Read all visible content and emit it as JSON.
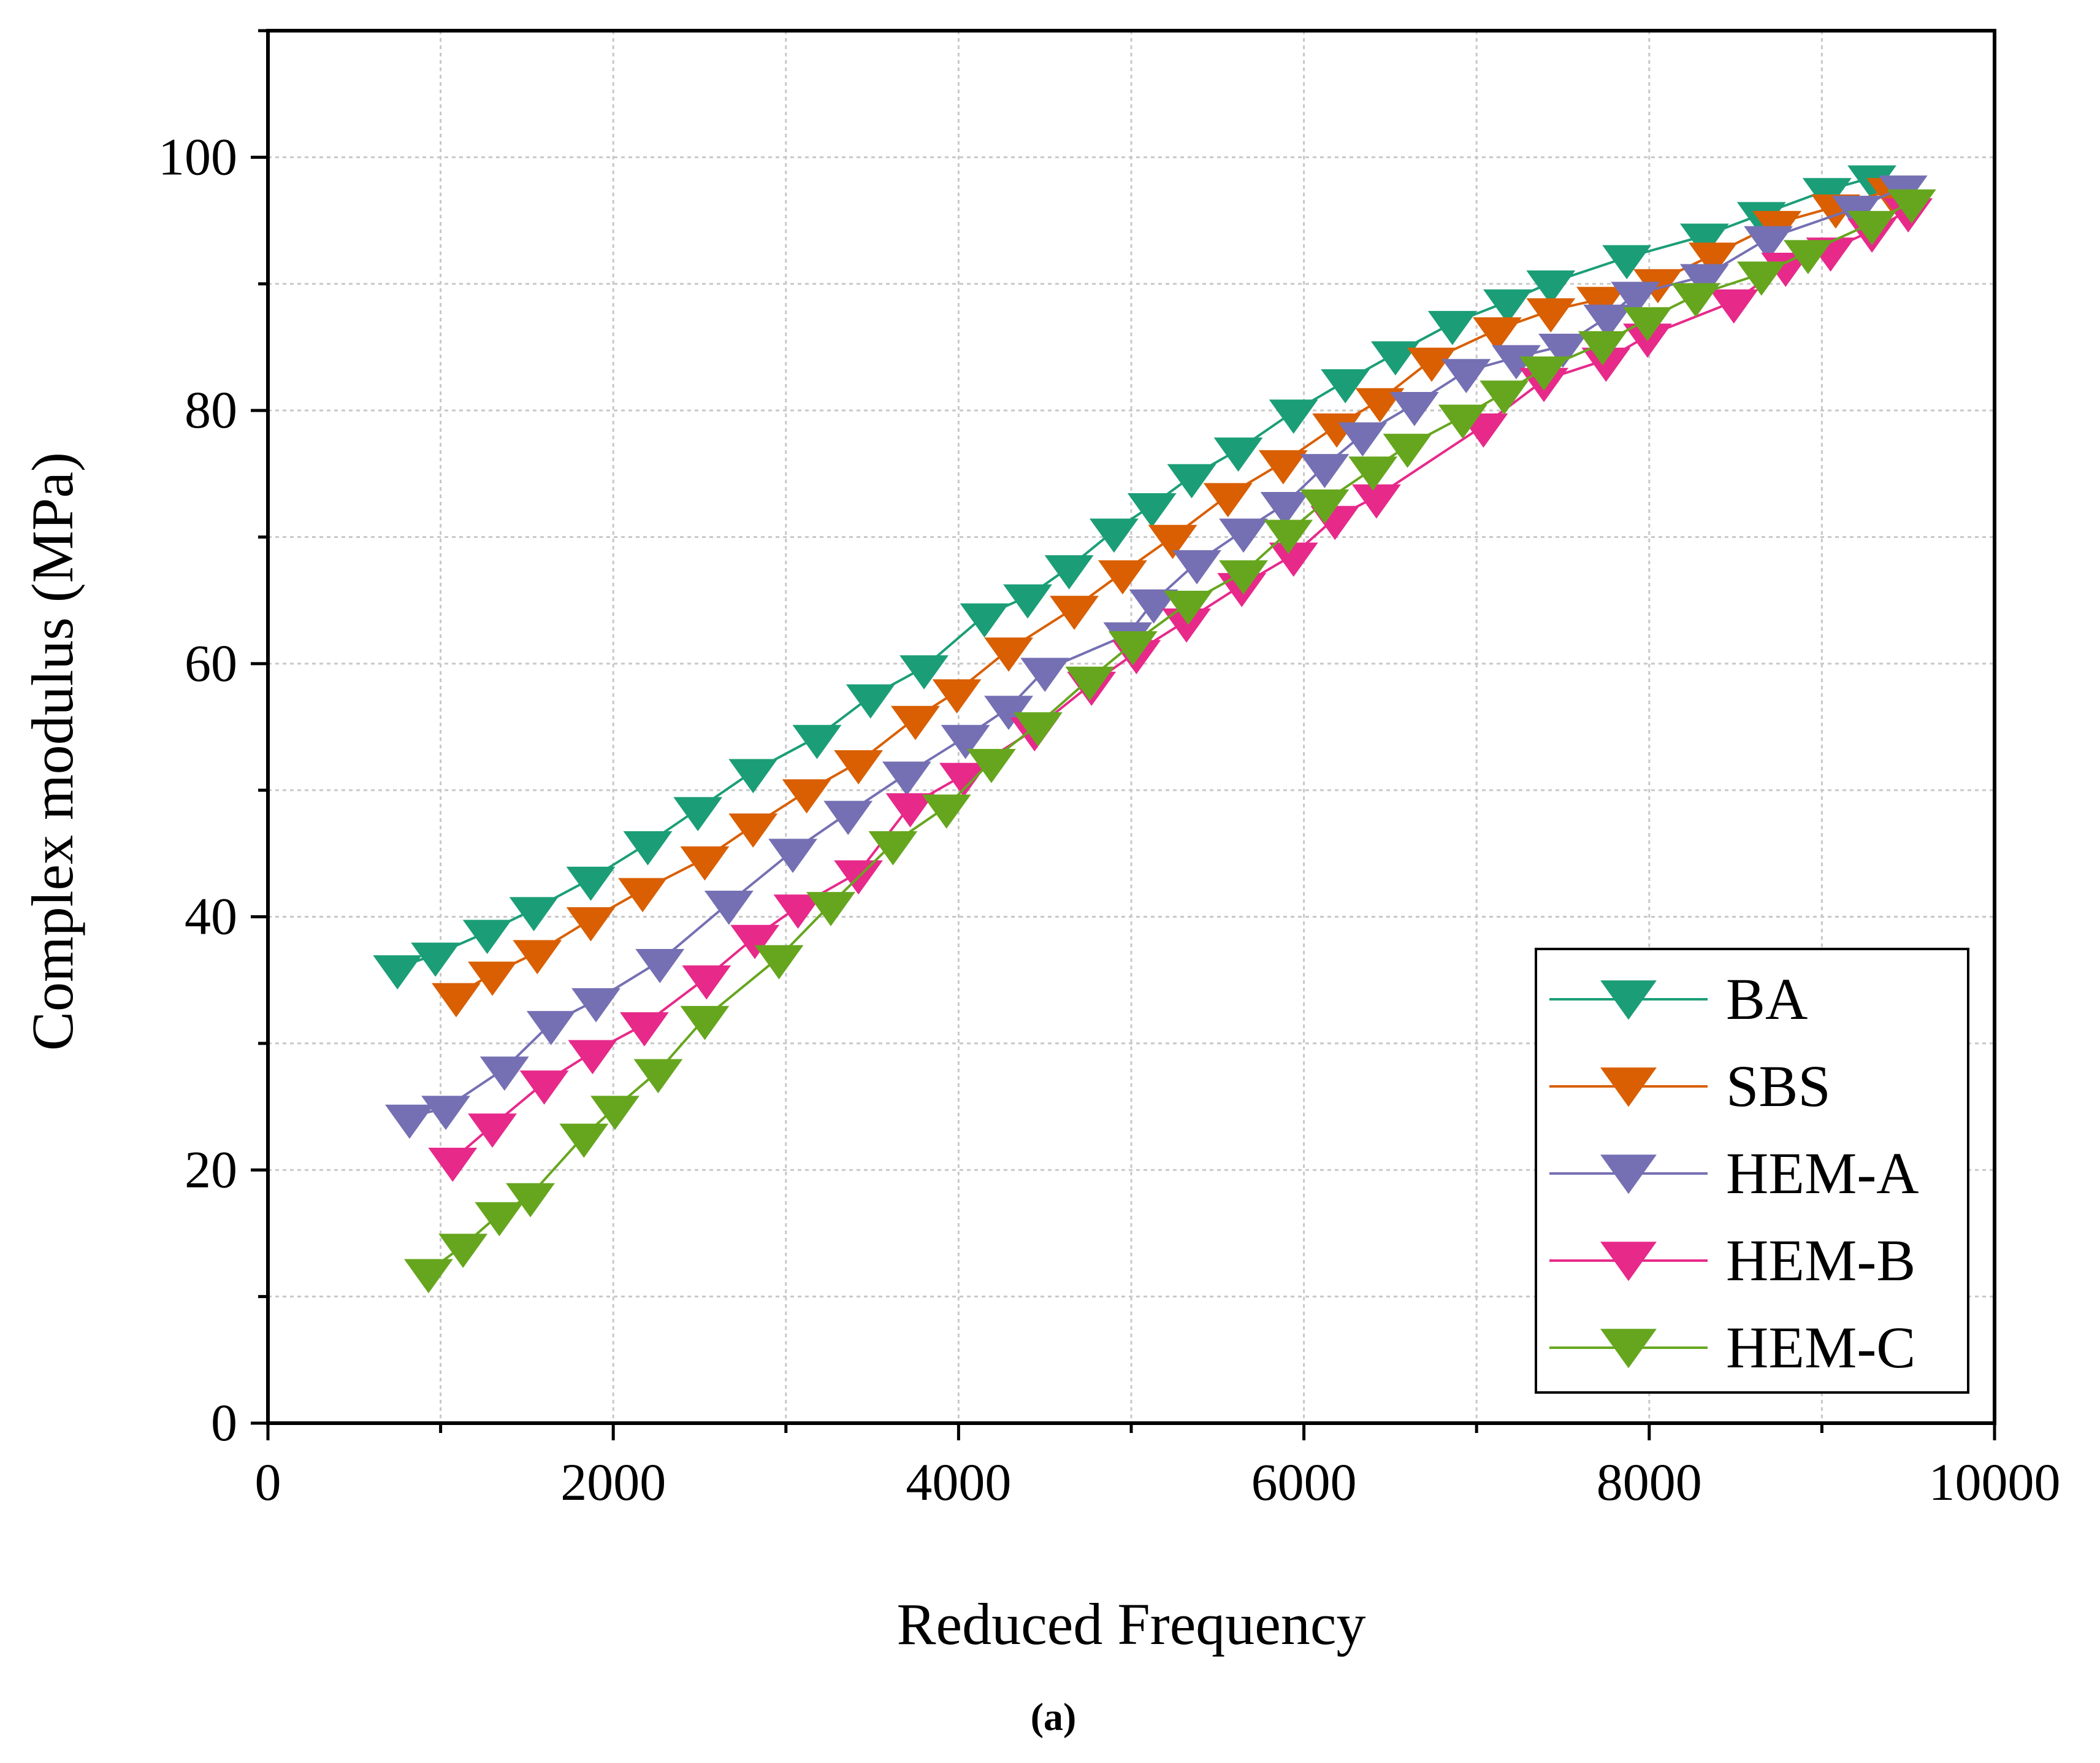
{
  "chart_data": {
    "type": "line",
    "title": "",
    "xlabel": "Reduced Frequency",
    "ylabel": "Complex modulus (MPa)",
    "caption": "(a)",
    "xlim": [
      0,
      10000
    ],
    "ylim": [
      0,
      110
    ],
    "xticks": [
      0,
      2000,
      4000,
      6000,
      8000,
      10000
    ],
    "yticks": [
      0,
      20,
      40,
      60,
      80,
      100
    ],
    "grid": true,
    "legend_position": "bottom-right",
    "marker": "triangle-down",
    "series": [
      {
        "name": "BA",
        "color": "#1b9e77",
        "x": [
          750,
          970,
          1270,
          1540,
          1870,
          2200,
          2490,
          2810,
          3180,
          3490,
          3800,
          4150,
          4400,
          4640,
          4900,
          5120,
          5350,
          5620,
          5940,
          6240,
          6530,
          6860,
          7180,
          7430,
          7870,
          8320,
          8650,
          9030,
          9290
        ],
        "y": [
          36.0,
          37.0,
          38.8,
          40.6,
          43.0,
          45.8,
          48.5,
          51.5,
          54.2,
          57.4,
          59.7,
          63.8,
          65.3,
          67.6,
          70.5,
          72.5,
          74.8,
          76.9,
          79.9,
          82.3,
          84.5,
          86.9,
          88.6,
          90.1,
          92.1,
          93.8,
          95.5,
          97.4,
          98.4
        ]
      },
      {
        "name": "SBS",
        "color": "#d95f02",
        "x": [
          1090,
          1300,
          1560,
          1870,
          2170,
          2530,
          2810,
          3120,
          3420,
          3750,
          3990,
          4290,
          4670,
          4950,
          5240,
          5560,
          5880,
          6190,
          6440,
          6740,
          7120,
          7430,
          7720,
          8050,
          8370,
          8740,
          9080,
          9400
        ],
        "y": [
          33.8,
          35.5,
          37.2,
          39.8,
          42.1,
          44.6,
          47.2,
          49.9,
          52.2,
          55.7,
          57.8,
          61.1,
          64.4,
          67.2,
          70.0,
          73.3,
          75.9,
          78.8,
          80.8,
          84.0,
          86.4,
          87.9,
          88.8,
          90.2,
          92.3,
          94.8,
          96.1,
          97.4
        ]
      },
      {
        "name": "HEM-A",
        "color": "#7570b3",
        "x": [
          820,
          1030,
          1370,
          1640,
          1900,
          2270,
          2670,
          3040,
          3360,
          3700,
          4040,
          4290,
          4500,
          4980,
          5130,
          5380,
          5650,
          5890,
          6120,
          6340,
          6640,
          6940,
          7230,
          7500,
          7760,
          7920,
          8320,
          8690,
          9200,
          9470
        ],
        "y": [
          24.2,
          24.9,
          28.0,
          31.6,
          33.4,
          36.5,
          41.1,
          45.2,
          48.2,
          51.3,
          54.2,
          56.5,
          59.5,
          62.3,
          64.9,
          68.0,
          70.5,
          72.6,
          75.6,
          78.1,
          80.5,
          83.1,
          84.2,
          85.1,
          87.4,
          89.2,
          90.6,
          93.6,
          96.0,
          97.6
        ]
      },
      {
        "name": "HEM-B",
        "color": "#e7298a",
        "x": [
          1070,
          1300,
          1600,
          1880,
          2180,
          2540,
          2820,
          3070,
          3420,
          3720,
          4030,
          4440,
          4770,
          5030,
          5320,
          5640,
          5940,
          6180,
          6420,
          7040,
          7390,
          7750,
          7990,
          8490,
          8790,
          9050,
          9290,
          9500
        ],
        "y": [
          20.8,
          23.5,
          26.9,
          29.3,
          31.5,
          35.2,
          38.4,
          40.8,
          43.5,
          48.8,
          51.2,
          54.8,
          58.4,
          60.9,
          63.4,
          66.2,
          68.6,
          71.5,
          73.2,
          78.8,
          82.4,
          84.0,
          85.9,
          88.6,
          91.5,
          92.7,
          94.2,
          95.8
        ]
      },
      {
        "name": "HEM-C",
        "color": "#66a61e",
        "x": [
          930,
          1130,
          1340,
          1520,
          1830,
          2010,
          2260,
          2530,
          2960,
          3260,
          3620,
          3930,
          4190,
          4460,
          4760,
          5010,
          5330,
          5650,
          5910,
          6120,
          6400,
          6600,
          6920,
          7160,
          7390,
          7730,
          7990,
          8270,
          8650,
          8920,
          9290,
          9520
        ],
        "y": [
          12.0,
          14.0,
          16.5,
          18.0,
          22.7,
          24.9,
          27.8,
          32.0,
          36.8,
          41.0,
          45.8,
          48.7,
          52.3,
          55.2,
          58.8,
          61.6,
          64.8,
          67.2,
          70.4,
          72.8,
          75.4,
          77.2,
          79.5,
          81.4,
          83.3,
          85.3,
          87.2,
          89.1,
          90.8,
          92.5,
          94.8,
          96.5
        ]
      }
    ]
  }
}
